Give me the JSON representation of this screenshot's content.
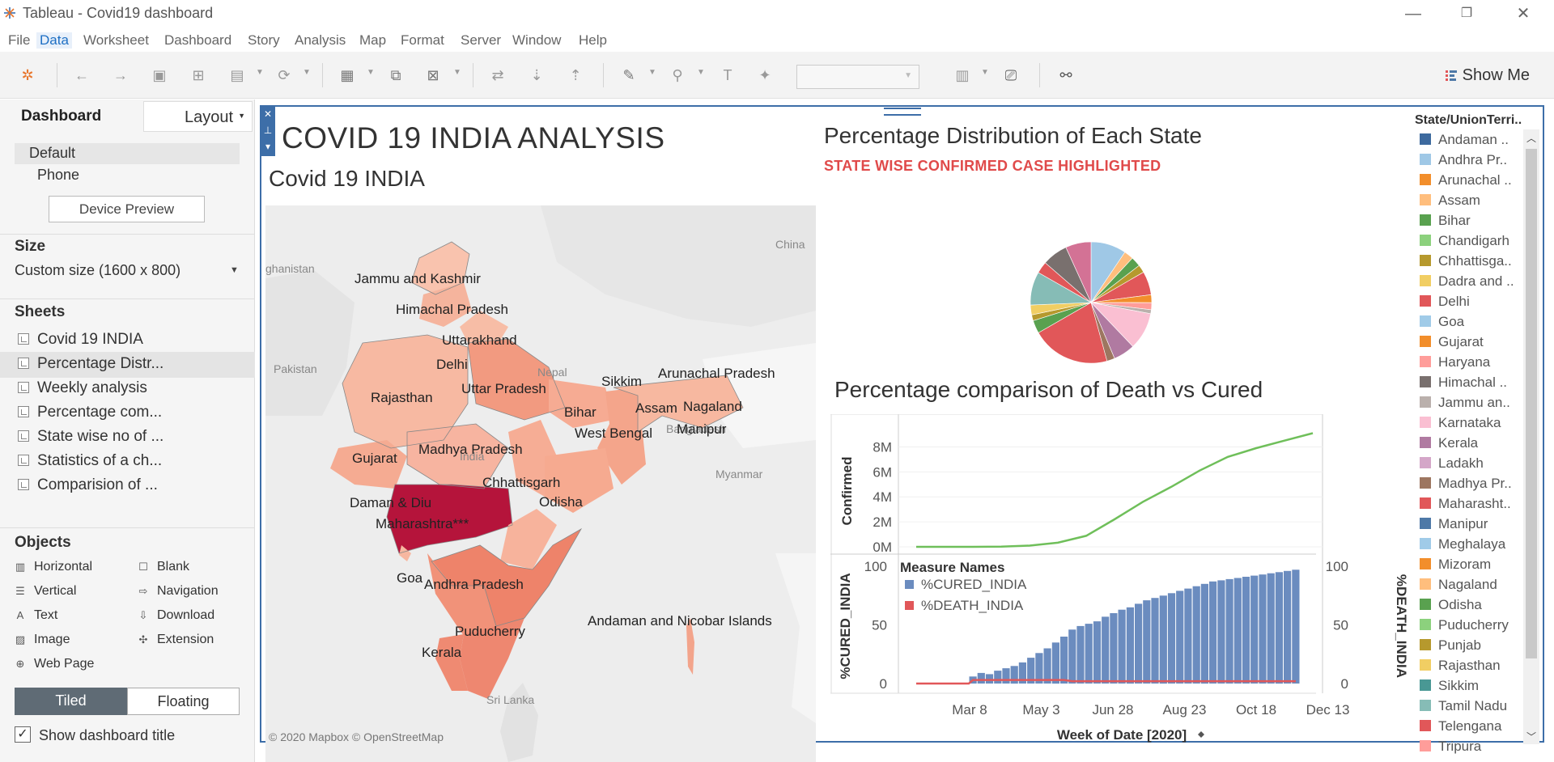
{
  "window": {
    "title": "Tableau - Covid19 dashboard"
  },
  "menu": [
    "File",
    "Data",
    "Worksheet",
    "Dashboard",
    "Story",
    "Analysis",
    "Map",
    "Format",
    "Server",
    "Window",
    "Help"
  ],
  "toolbar": {
    "show_me": "Show Me"
  },
  "left_pane": {
    "tabs": [
      "Dashboard",
      "Layout"
    ],
    "device": {
      "default": "Default",
      "phone": "Phone",
      "preview_button": "Device Preview"
    },
    "size": {
      "header": "Size",
      "value": "Custom size (1600 x 800)"
    },
    "sheets": {
      "header": "Sheets",
      "items": [
        "Covid 19 INDIA",
        "Percentage Distr...",
        "Weekly analysis",
        "Percentage com...",
        "State wise no of ...",
        "Statistics of a ch...",
        "Comparision of ..."
      ]
    },
    "objects": {
      "header": "Objects",
      "items": [
        "Horizontal",
        "Blank",
        "Vertical",
        "Navigation",
        "Text",
        "Download",
        "Image",
        "Extension",
        "Web Page"
      ]
    },
    "layout_mode": {
      "tiled": "Tiled",
      "floating": "Floating"
    },
    "show_title": "Show dashboard title"
  },
  "dashboard": {
    "title": "COVID 19 INDIA ANALYSIS",
    "map": {
      "title": "Covid 19 INDIA",
      "state_labels": [
        "Jammu and Kashmir",
        "Himachal Pradesh",
        "Uttarakhand",
        "Delhi",
        "Rajasthan",
        "Uttar Pradesh",
        "Sikkim",
        "Arunachal Pradesh",
        "Assam",
        "Nagaland",
        "Bihar",
        "West Bengal",
        "Manipur",
        "Gujarat",
        "Madhya Pradesh",
        "Chhattisgarh",
        "Daman & Diu",
        "Odisha",
        "Maharashtra***",
        "Goa",
        "Andhra Pradesh",
        "Puducherry",
        "Kerala",
        "Andaman and Nicobar Islands"
      ],
      "background_labels": [
        "China",
        "Pakistan",
        "Nepal",
        "Bangladesh",
        "Myanmar",
        "Sri Lanka",
        "ghanistan",
        "India"
      ],
      "copyright": "© 2020 Mapbox © OpenStreetMap"
    },
    "pie": {
      "title": "Percentage Distribution of Each State",
      "subtitle": "STATE WISE CONFIRMED CASE HIGHLIGHTED"
    },
    "compare": {
      "title": "Percentage comparison of Death vs Cured"
    },
    "legend": {
      "title": "State/UnionTerri..",
      "items": [
        {
          "label": "Andaman ..",
          "color": "#3d6a9e"
        },
        {
          "label": "Andhra Pr..",
          "color": "#9fc8e6"
        },
        {
          "label": "Arunachal ..",
          "color": "#f28e2b"
        },
        {
          "label": "Assam",
          "color": "#ffbe7d"
        },
        {
          "label": "Bihar",
          "color": "#59a14f"
        },
        {
          "label": "Chandigarh",
          "color": "#8cd17d"
        },
        {
          "label": "Chhattisga..",
          "color": "#b6992d"
        },
        {
          "label": "Dadra and ..",
          "color": "#f1ce63"
        },
        {
          "label": "Delhi",
          "color": "#e15759"
        },
        {
          "label": "Goa",
          "color": "#a0cbe8"
        },
        {
          "label": "Gujarat",
          "color": "#f28e2b"
        },
        {
          "label": "Haryana",
          "color": "#ff9d9a"
        },
        {
          "label": "Himachal ..",
          "color": "#79706e"
        },
        {
          "label": "Jammu an..",
          "color": "#bab0ac"
        },
        {
          "label": "Karnataka",
          "color": "#fabfd2"
        },
        {
          "label": "Kerala",
          "color": "#b07aa1"
        },
        {
          "label": "Ladakh",
          "color": "#d4a6c8"
        },
        {
          "label": "Madhya Pr..",
          "color": "#9d7660"
        },
        {
          "label": "Maharasht..",
          "color": "#e15759"
        },
        {
          "label": "Manipur",
          "color": "#4e79a7"
        },
        {
          "label": "Meghalaya",
          "color": "#a0cbe8"
        },
        {
          "label": "Mizoram",
          "color": "#f28e2b"
        },
        {
          "label": "Nagaland",
          "color": "#ffbe7d"
        },
        {
          "label": "Odisha",
          "color": "#59a14f"
        },
        {
          "label": "Puducherry",
          "color": "#8cd17d"
        },
        {
          "label": "Punjab",
          "color": "#b6992d"
        },
        {
          "label": "Rajasthan",
          "color": "#f1ce63"
        },
        {
          "label": "Sikkim",
          "color": "#499894"
        },
        {
          "label": "Tamil Nadu",
          "color": "#86bcb6"
        },
        {
          "label": "Telengana",
          "color": "#e15759"
        },
        {
          "label": "Tripura",
          "color": "#ff9d9a"
        }
      ]
    }
  },
  "chart_data": [
    {
      "type": "pie",
      "title": "Percentage Distribution of Each State",
      "slices": [
        {
          "label": "Andhra Pr..",
          "value": 9.0,
          "color": "#9fc8e6"
        },
        {
          "label": "Assam",
          "value": 2.4,
          "color": "#ffbe7d"
        },
        {
          "label": "Bihar",
          "value": 2.5,
          "color": "#59a14f"
        },
        {
          "label": "Chhattisga..",
          "value": 2.0,
          "color": "#b6992d"
        },
        {
          "label": "Delhi",
          "value": 6.0,
          "color": "#e15759"
        },
        {
          "label": "Gujarat",
          "value": 2.0,
          "color": "#f28e2b"
        },
        {
          "label": "Haryana",
          "value": 1.8,
          "color": "#ff9d9a"
        },
        {
          "label": "Jammu an..",
          "value": 1.0,
          "color": "#bab0ac"
        },
        {
          "label": "Karnataka",
          "value": 9.5,
          "color": "#fabfd2"
        },
        {
          "label": "Kerala",
          "value": 5.5,
          "color": "#b07aa1"
        },
        {
          "label": "Madhya Pr..",
          "value": 2.0,
          "color": "#9d7660"
        },
        {
          "label": "Maharasht..",
          "value": 20.0,
          "color": "#e15759"
        },
        {
          "label": "Odisha",
          "value": 3.3,
          "color": "#59a14f"
        },
        {
          "label": "Punjab",
          "value": 1.5,
          "color": "#b6992d"
        },
        {
          "label": "Rajasthan",
          "value": 2.5,
          "color": "#f1ce63"
        },
        {
          "label": "Tamil Nadu",
          "value": 8.5,
          "color": "#86bcb6"
        },
        {
          "label": "Telengana",
          "value": 3.0,
          "color": "#e15759"
        },
        {
          "label": "Uttar Pradesh",
          "value": 6.5,
          "color": "#79706e"
        },
        {
          "label": "West Bengal",
          "value": 6.5,
          "color": "#d37295"
        }
      ]
    },
    {
      "type": "line",
      "title": "Percentage comparison of Death vs Cured",
      "ylabel": "Confirmed",
      "yticks": [
        "0M",
        "2M",
        "4M",
        "6M",
        "8M"
      ],
      "ylim": [
        0,
        9000000
      ],
      "color": "#6fbf5a",
      "x": [
        "2020-01-26",
        "2020-02-23",
        "2020-03-22",
        "2020-04-19",
        "2020-05-17",
        "2020-06-14",
        "2020-07-12",
        "2020-08-09",
        "2020-08-30",
        "2020-09-13",
        "2020-09-27",
        "2020-10-11",
        "2020-10-25",
        "2020-11-08",
        "2020-11-22"
      ],
      "values": [
        0,
        0,
        500,
        20000,
        100000,
        330000,
        880000,
        2200000,
        3600000,
        4800000,
        6100000,
        7200000,
        7900000,
        8500000,
        9100000
      ]
    },
    {
      "type": "bar",
      "title": "Percentage comparison of Death vs Cured",
      "xlabel": "Week of Date [2020]",
      "xticks": [
        "Mar 8",
        "May 3",
        "Jun 28",
        "Aug 23",
        "Oct 18",
        "Dec 13"
      ],
      "ylabel_left": "%CURED_INDIA",
      "ylabel_right": "%DEATH_INDIA",
      "yticks": [
        "0",
        "50",
        "100"
      ],
      "ylim": [
        0,
        100
      ],
      "legend_title": "Measure Names",
      "series": [
        {
          "name": "%CURED_INDIA",
          "color": "#6b8cbf",
          "values": [
            6,
            9,
            8,
            11,
            13,
            15,
            18,
            22,
            26,
            30,
            35,
            40,
            46,
            49,
            51,
            53,
            57,
            60,
            63,
            65,
            68,
            71,
            73,
            75,
            77,
            79,
            81,
            83,
            85,
            87,
            88,
            89,
            90,
            91,
            92,
            93,
            94,
            95,
            96,
            97
          ]
        },
        {
          "name": "%DEATH_INDIA",
          "color": "#e15759",
          "values": [
            3,
            3,
            3,
            3,
            3,
            3,
            3,
            3,
            3,
            3,
            3,
            3,
            2,
            2,
            2,
            2,
            2,
            2,
            2,
            2,
            2,
            2,
            2,
            2,
            2,
            2,
            2,
            2,
            2,
            2,
            2,
            2,
            2,
            2,
            2,
            2,
            2,
            2,
            2,
            2
          ]
        }
      ]
    }
  ]
}
